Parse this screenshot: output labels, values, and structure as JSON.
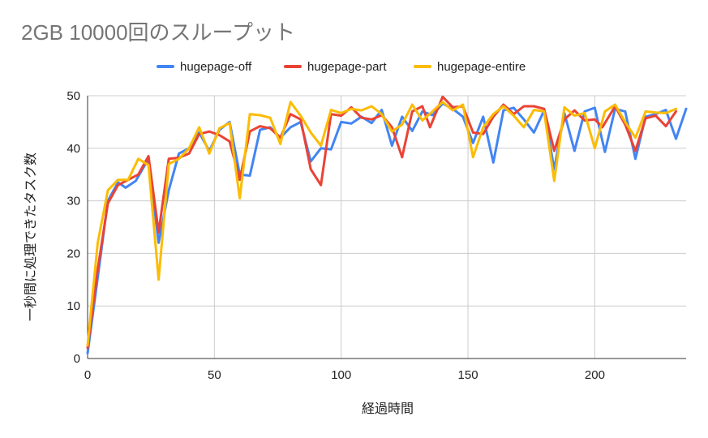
{
  "chart_data": {
    "type": "line",
    "title": "2GB 10000回のスループット",
    "xlabel": "経過時間",
    "ylabel": "一秒間に処理できたタスク数",
    "xlim": [
      0,
      236
    ],
    "ylim": [
      0,
      50
    ],
    "x_ticks": [
      "0",
      "50",
      "100",
      "150",
      "200"
    ],
    "y_ticks": [
      "0",
      "10",
      "20",
      "30",
      "40",
      "50"
    ],
    "grid": "both",
    "legend_position": "top",
    "series": [
      {
        "name": "hugepage-off",
        "color": "#4285f4",
        "points": [
          [
            0,
            1
          ],
          [
            5,
            19
          ],
          [
            8,
            30
          ],
          [
            12,
            33.5
          ],
          [
            15,
            32.5
          ],
          [
            19,
            33.8
          ],
          [
            24,
            38
          ],
          [
            28,
            22
          ],
          [
            32,
            32
          ],
          [
            36,
            39
          ],
          [
            40,
            40
          ],
          [
            44,
            43
          ],
          [
            48,
            39.5
          ],
          [
            52,
            43.5
          ],
          [
            56,
            45
          ],
          [
            60,
            35
          ],
          [
            64,
            34.8
          ],
          [
            68,
            43.5
          ],
          [
            72,
            44
          ],
          [
            76,
            42
          ],
          [
            80,
            44
          ],
          [
            84,
            45
          ],
          [
            88,
            37.5
          ],
          [
            92,
            40
          ],
          [
            96,
            39.8
          ],
          [
            100,
            45
          ],
          [
            104,
            44.7
          ],
          [
            108,
            46
          ],
          [
            112,
            44.8
          ],
          [
            116,
            47.3
          ],
          [
            120,
            40.5
          ],
          [
            124,
            46
          ],
          [
            128,
            43.3
          ],
          [
            132,
            47
          ],
          [
            136,
            46.3
          ],
          [
            140,
            48.5
          ],
          [
            144,
            47.5
          ],
          [
            148,
            46
          ],
          [
            152,
            41
          ],
          [
            156,
            46
          ],
          [
            160,
            37.3
          ],
          [
            164,
            47.2
          ],
          [
            168,
            47.7
          ],
          [
            172,
            45.5
          ],
          [
            176,
            43
          ],
          [
            180,
            47.2
          ],
          [
            184,
            36
          ],
          [
            188,
            46.7
          ],
          [
            192,
            39.5
          ],
          [
            196,
            47
          ],
          [
            200,
            47.7
          ],
          [
            204,
            39.3
          ],
          [
            208,
            47.5
          ],
          [
            212,
            47
          ],
          [
            216,
            38
          ],
          [
            220,
            46
          ],
          [
            224,
            46.5
          ],
          [
            228,
            47.3
          ],
          [
            232,
            41.8
          ],
          [
            236,
            47.5
          ]
        ]
      },
      {
        "name": "hugepage-part",
        "color": "#ea4335",
        "points": [
          [
            0,
            2
          ],
          [
            4,
            17
          ],
          [
            8,
            29.5
          ],
          [
            12,
            33
          ],
          [
            16,
            34
          ],
          [
            20,
            35
          ],
          [
            24,
            38.5
          ],
          [
            28,
            24
          ],
          [
            32,
            38
          ],
          [
            36,
            38.2
          ],
          [
            40,
            39
          ],
          [
            44,
            42.7
          ],
          [
            48,
            43.2
          ],
          [
            52,
            42.5
          ],
          [
            56,
            41.3
          ],
          [
            60,
            34
          ],
          [
            64,
            43.2
          ],
          [
            68,
            44.2
          ],
          [
            72,
            43.8
          ],
          [
            76,
            42
          ],
          [
            80,
            46.5
          ],
          [
            84,
            45.5
          ],
          [
            88,
            36
          ],
          [
            92,
            33
          ],
          [
            96,
            46.5
          ],
          [
            100,
            46.2
          ],
          [
            104,
            47.8
          ],
          [
            108,
            45.8
          ],
          [
            112,
            45.5
          ],
          [
            116,
            46.3
          ],
          [
            120,
            44
          ],
          [
            124,
            38.3
          ],
          [
            128,
            47
          ],
          [
            132,
            48
          ],
          [
            135,
            44
          ],
          [
            140,
            49.8
          ],
          [
            144,
            47.8
          ],
          [
            148,
            48
          ],
          [
            152,
            43
          ],
          [
            156,
            42.7
          ],
          [
            160,
            46
          ],
          [
            164,
            48.3
          ],
          [
            168,
            46.5
          ],
          [
            172,
            48
          ],
          [
            176,
            48
          ],
          [
            180,
            47.5
          ],
          [
            184,
            39.5
          ],
          [
            188,
            45.5
          ],
          [
            192,
            47.2
          ],
          [
            196,
            45.3
          ],
          [
            200,
            45.5
          ],
          [
            203,
            44
          ],
          [
            208,
            48
          ],
          [
            212,
            44.5
          ],
          [
            216,
            39.5
          ],
          [
            220,
            45.7
          ],
          [
            224,
            46.2
          ],
          [
            228,
            44.2
          ],
          [
            232,
            47
          ]
        ]
      },
      {
        "name": "hugepage-entire",
        "color": "#fbbc04",
        "points": [
          [
            0,
            2.5
          ],
          [
            4,
            22
          ],
          [
            8,
            32
          ],
          [
            12,
            34
          ],
          [
            16,
            34
          ],
          [
            20,
            38
          ],
          [
            24,
            36.8
          ],
          [
            28,
            15
          ],
          [
            32,
            37
          ],
          [
            36,
            38
          ],
          [
            40,
            40
          ],
          [
            44,
            44
          ],
          [
            48,
            39
          ],
          [
            52,
            43.8
          ],
          [
            56,
            44.8
          ],
          [
            60,
            30.5
          ],
          [
            64,
            46.5
          ],
          [
            68,
            46.3
          ],
          [
            72,
            45.8
          ],
          [
            76,
            40.8
          ],
          [
            80,
            48.8
          ],
          [
            84,
            46.2
          ],
          [
            88,
            43
          ],
          [
            92,
            40.5
          ],
          [
            96,
            47.3
          ],
          [
            100,
            46.7
          ],
          [
            104,
            47.5
          ],
          [
            108,
            47.2
          ],
          [
            112,
            48
          ],
          [
            116,
            46.5
          ],
          [
            120,
            43.2
          ],
          [
            124,
            44.5
          ],
          [
            128,
            48.3
          ],
          [
            132,
            45.3
          ],
          [
            136,
            47
          ],
          [
            140,
            48.8
          ],
          [
            144,
            47.2
          ],
          [
            148,
            48.3
          ],
          [
            152,
            38.3
          ],
          [
            156,
            44
          ],
          [
            160,
            46.5
          ],
          [
            164,
            48
          ],
          [
            168,
            46.2
          ],
          [
            172,
            44
          ],
          [
            176,
            47.3
          ],
          [
            180,
            47
          ],
          [
            184,
            33.8
          ],
          [
            188,
            47.8
          ],
          [
            192,
            46.2
          ],
          [
            196,
            46.7
          ],
          [
            200,
            40
          ],
          [
            204,
            47
          ],
          [
            208,
            48.3
          ],
          [
            212,
            45
          ],
          [
            216,
            42
          ],
          [
            220,
            47
          ],
          [
            224,
            46.8
          ],
          [
            228,
            46.7
          ],
          [
            232,
            47.5
          ]
        ]
      }
    ]
  }
}
